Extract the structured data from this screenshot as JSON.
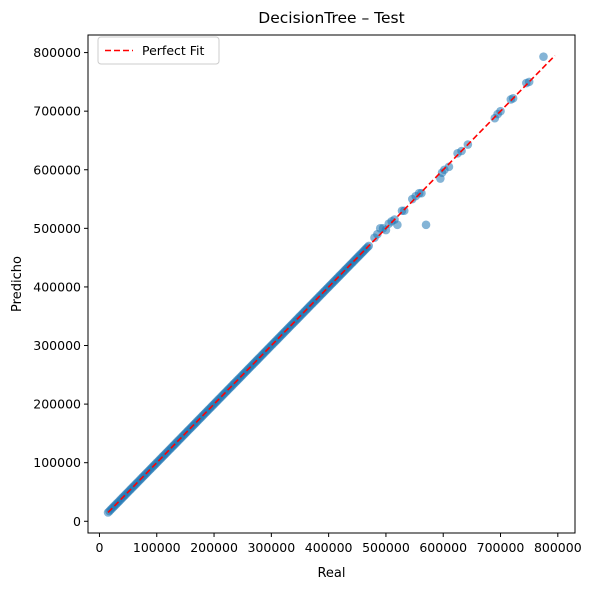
{
  "chart_data": {
    "type": "scatter",
    "title": "DecisionTree – Test",
    "xlabel": "Real",
    "ylabel": "Predicho",
    "xlim": [
      -20000,
      830000
    ],
    "ylim": [
      -20000,
      830000
    ],
    "xticks": [
      0,
      100000,
      200000,
      300000,
      400000,
      500000,
      600000,
      700000,
      800000
    ],
    "yticks": [
      0,
      100000,
      200000,
      300000,
      400000,
      500000,
      600000,
      700000,
      800000
    ],
    "tick_labels_x": [
      "0",
      "100000",
      "200000",
      "300000",
      "400000",
      "500000",
      "600000",
      "700000",
      "800000"
    ],
    "tick_labels_y": [
      "0",
      "100000",
      "200000",
      "300000",
      "400000",
      "500000",
      "600000",
      "700000",
      "800000"
    ],
    "grid": false,
    "legend": {
      "position": "top-left",
      "entries": [
        "Perfect Fit"
      ]
    },
    "colors": {
      "points": "#1f77b4",
      "fit_line": "#ff0000"
    },
    "perfect_fit": {
      "x": [
        15000,
        795000
      ],
      "y": [
        15000,
        795000
      ],
      "style": "dashed"
    },
    "dense_diagonal": {
      "from": 15000,
      "to": 470000,
      "step": 2500
    },
    "points": [
      [
        480000,
        484000
      ],
      [
        485000,
        490000
      ],
      [
        490000,
        500000
      ],
      [
        495000,
        500000
      ],
      [
        500000,
        497000
      ],
      [
        505000,
        508000
      ],
      [
        510000,
        512000
      ],
      [
        515000,
        515000
      ],
      [
        520000,
        506000
      ],
      [
        528000,
        530000
      ],
      [
        532000,
        530000
      ],
      [
        546000,
        550000
      ],
      [
        552000,
        555000
      ],
      [
        558000,
        560000
      ],
      [
        562000,
        560000
      ],
      [
        570000,
        506000
      ],
      [
        595000,
        585000
      ],
      [
        598000,
        595000
      ],
      [
        602000,
        600000
      ],
      [
        610000,
        605000
      ],
      [
        625000,
        628000
      ],
      [
        632000,
        632000
      ],
      [
        643000,
        643000
      ],
      [
        690000,
        688000
      ],
      [
        695000,
        695000
      ],
      [
        700000,
        700000
      ],
      [
        718000,
        720000
      ],
      [
        722000,
        722000
      ],
      [
        745000,
        748000
      ],
      [
        750000,
        750000
      ],
      [
        775000,
        793000
      ]
    ]
  },
  "legend_label": "Perfect Fit"
}
